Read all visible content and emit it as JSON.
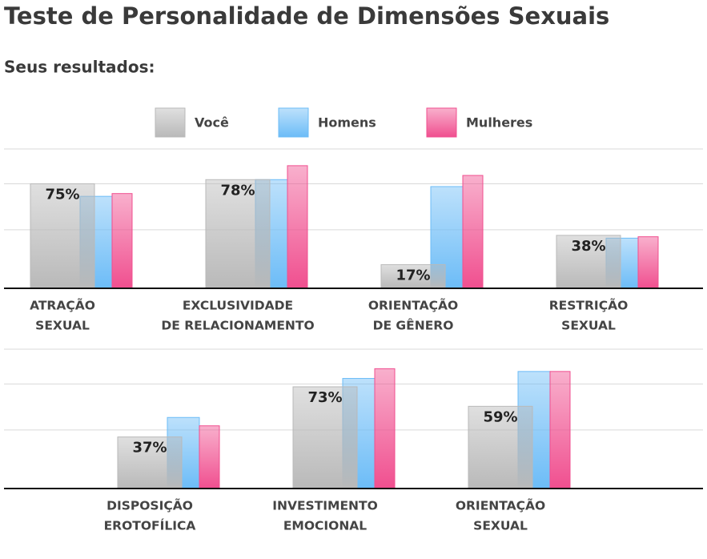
{
  "title": "Teste de Personalidade de Dimensões Sexuais",
  "subtitle": "Seus resultados:",
  "chart_data": [
    {
      "type": "bar",
      "ylim": [
        0,
        100
      ],
      "yticks": [
        42,
        75,
        100
      ],
      "grid": true,
      "categories": [
        [
          "ATRAÇÃO",
          "SEXUAL"
        ],
        [
          "EXCLUSIVIDADE",
          "DE RELACIONAMENTO"
        ],
        [
          "ORIENTAÇÃO",
          "DE GÊNERO"
        ],
        [
          "RESTRIÇÃO",
          "SEXUAL"
        ]
      ],
      "series": [
        {
          "name": "Você",
          "color": "#b9b9b9",
          "values": [
            75,
            78,
            17,
            38
          ],
          "value_labels": [
            "75%",
            "78%",
            "17%",
            "38%"
          ]
        },
        {
          "name": "Homens",
          "color": "#6cbcf7",
          "values": [
            66,
            78,
            73,
            36
          ]
        },
        {
          "name": "Mulheres",
          "color": "#f04f8f",
          "values": [
            68,
            88,
            81,
            37
          ]
        }
      ]
    },
    {
      "type": "bar",
      "ylim": [
        0,
        100
      ],
      "yticks": [
        42,
        75,
        100
      ],
      "grid": true,
      "categories": [
        [
          "DISPOSIÇÃO",
          "EROTOFÍLICA"
        ],
        [
          "INVESTIMENTO",
          "EMOCIONAL"
        ],
        [
          "ORIENTAÇÃO",
          "SEXUAL"
        ]
      ],
      "series": [
        {
          "color": "#b9b9b9",
          "values": [
            37,
            73,
            59
          ],
          "value_labels": [
            "37%",
            "73%",
            "59%"
          ]
        },
        {
          "color": "#6cbcf7",
          "values": [
            51,
            79,
            84
          ]
        },
        {
          "color": "#f04f8f",
          "values": [
            45,
            86,
            84
          ]
        }
      ]
    }
  ]
}
